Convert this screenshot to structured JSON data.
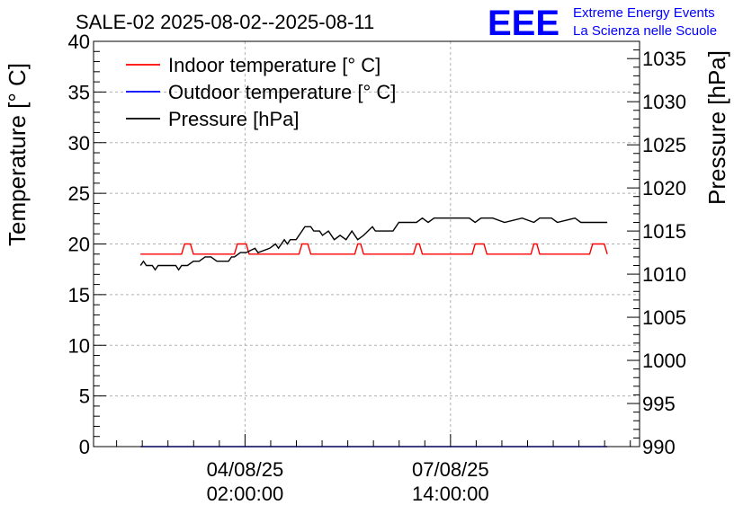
{
  "chart_data": {
    "type": "line",
    "title": "SALE-02 2025-08-02--2025-08-11",
    "ylabel": "Temperature [° C]",
    "ylabel_right": "Pressure [hPa]",
    "ylim": [
      0,
      40
    ],
    "ylim_right": [
      990,
      1037
    ],
    "yticks": [
      "0",
      "5",
      "10",
      "15",
      "20",
      "25",
      "30",
      "35",
      "40"
    ],
    "yticks_right": [
      "990",
      "995",
      "1000",
      "1005",
      "1010",
      "1015",
      "1020",
      "1025",
      "1030",
      "1035"
    ],
    "xtick_labels": [
      {
        "date": "04/08/25",
        "time": "02:00:00"
      },
      {
        "date": "07/08/25",
        "time": "14:00:00"
      }
    ],
    "grid": true,
    "legend_position": "top-left",
    "x_range_days": [
      0.0,
      9.3
    ],
    "xtick_days": [
      2.58,
      6.08
    ],
    "series": [
      {
        "name": "Indoor temperature [° C]",
        "axis": "left",
        "color": "#ff0000",
        "x": [
          0.8,
          1.5,
          1.55,
          1.65,
          1.7,
          2.4,
          2.45,
          2.6,
          2.65,
          3.5,
          3.55,
          3.65,
          3.7,
          4.45,
          4.5,
          4.55,
          4.6,
          5.45,
          5.5,
          5.55,
          5.6,
          6.45,
          6.5,
          6.65,
          6.7,
          7.45,
          7.5,
          7.55,
          7.6,
          8.45,
          8.5,
          8.7,
          8.75
        ],
        "y": [
          19,
          19,
          20,
          20,
          19,
          19,
          20,
          20,
          19,
          19,
          20,
          20,
          19,
          19,
          20,
          20,
          19,
          19,
          20,
          20,
          19,
          19,
          20,
          20,
          19,
          19,
          20,
          20,
          19,
          19,
          20,
          20,
          19
        ]
      },
      {
        "name": "Outdoor temperature [° C]",
        "axis": "left",
        "color": "#0000ff",
        "x": [
          0.8,
          8.75
        ],
        "y": [
          0,
          0
        ]
      },
      {
        "name": "Pressure [hPa]",
        "axis": "right",
        "color": "#000000",
        "x": [
          0.8,
          0.85,
          0.9,
          1.0,
          1.05,
          1.1,
          1.2,
          1.4,
          1.45,
          1.5,
          1.6,
          1.7,
          1.8,
          1.9,
          2.0,
          2.1,
          2.3,
          2.35,
          2.4,
          2.5,
          2.6,
          2.75,
          2.8,
          3.0,
          3.1,
          3.15,
          3.25,
          3.3,
          3.35,
          3.45,
          3.55,
          3.6,
          3.7,
          3.75,
          3.85,
          3.9,
          4.0,
          4.1,
          4.2,
          4.3,
          4.4,
          4.5,
          4.6,
          4.75,
          4.8,
          5.1,
          5.2,
          5.5,
          5.6,
          5.7,
          5.8,
          6.0,
          6.3,
          6.4,
          6.5,
          6.6,
          6.8,
          7.0,
          7.3,
          7.5,
          7.6,
          7.8,
          7.9,
          8.2,
          8.3,
          8.4,
          8.5,
          8.75
        ],
        "y": [
          1011,
          1011.5,
          1011,
          1011,
          1010.5,
          1011,
          1011,
          1011,
          1010.5,
          1011,
          1011,
          1011.5,
          1011.5,
          1012,
          1012,
          1011.5,
          1011.5,
          1012,
          1012,
          1012.5,
          1012.5,
          1013,
          1012.5,
          1013,
          1013.5,
          1013,
          1014,
          1013.5,
          1014,
          1014,
          1015,
          1015.5,
          1015.5,
          1015,
          1015,
          1014.5,
          1015,
          1014,
          1014.5,
          1014,
          1015,
          1014,
          1014.5,
          1015.5,
          1015,
          1015,
          1016,
          1016,
          1016.5,
          1016,
          1016.5,
          1016.5,
          1016.5,
          1016.5,
          1016,
          1016.5,
          1016.5,
          1016,
          1016.5,
          1016,
          1016.5,
          1016.5,
          1016,
          1016.5,
          1016,
          1016,
          1016,
          1016
        ]
      }
    ],
    "logo": {
      "mark": "EEE",
      "line1": "Extreme Energy Events",
      "line2": "La Scienza nelle Scuole",
      "color": "#0000ff"
    }
  }
}
